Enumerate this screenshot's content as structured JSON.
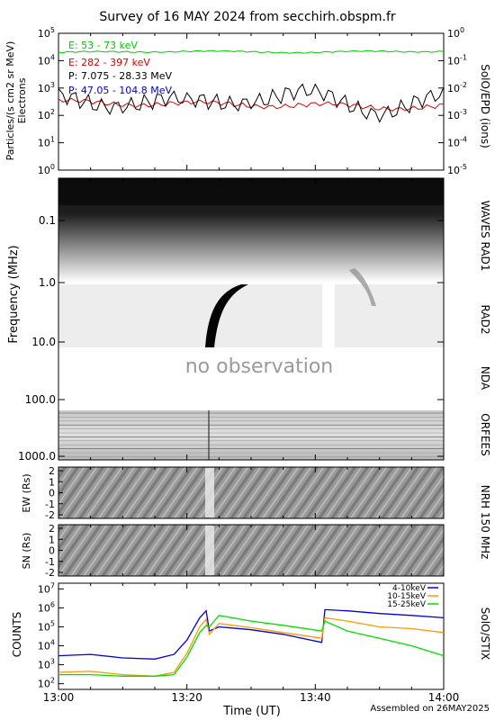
{
  "title": "Survey of 16 MAY 2024 from secchirh.obspm.fr",
  "footer": {
    "xlabel": "Time (UT)",
    "assembled": "Assembled on 26MAY2025"
  },
  "time_axis": {
    "range": [
      "13:00",
      "14:00"
    ],
    "tick_labels": [
      "13:00",
      "13:20",
      "13:40",
      "14:00"
    ]
  },
  "panels": {
    "epd": {
      "ylabel": "Particles/(s cm2 sr MeV)",
      "ylabel2": "Electrons",
      "right_label": "SolO/EPD (ions)",
      "left_ticks": [
        "10^0",
        "10^1",
        "10^2",
        "10^3",
        "10^4",
        "10^5"
      ],
      "right_ticks": [
        "10^-5",
        "10^-4",
        "10^-3",
        "10^-2",
        "10^-1",
        "10^0"
      ]
    },
    "radio": {
      "ylabel": "Frequency (MHz)",
      "freq_ticks": [
        "0.1",
        "1.0",
        "10.0",
        "100.0",
        "1000.0"
      ],
      "labels": {
        "waves": "WAVES RAD1",
        "rad2": "RAD2",
        "nda": "NDA",
        "orfees": "ORFEES"
      },
      "no_obs": "no observation"
    },
    "nrh": {
      "label": "NRH 150 MHz",
      "ew_label": "EW (Rs)",
      "sn_label": "SN (Rs)",
      "ticks": [
        "2",
        "1",
        "0",
        "-1",
        "-2"
      ]
    },
    "stix": {
      "ylabel": "COUNTS",
      "right_label": "SolO/STIX",
      "ticks": [
        "10^2",
        "10^3",
        "10^4",
        "10^5",
        "10^6",
        "10^7"
      ]
    }
  },
  "colors": {
    "green": "#00cc00",
    "red": "#dd0000",
    "black": "#000000",
    "blue": "#0000cc",
    "orange": "#ff9900",
    "stix_blue": "#0000dd",
    "stix_green": "#00dd00"
  },
  "chart_data": [
    {
      "type": "line",
      "title": "",
      "ylabel": "Particles/(s cm2 sr MeV)",
      "yscale": "log",
      "ylim": [
        1,
        100000
      ],
      "xlim": [
        "13:00",
        "14:00"
      ],
      "series": [
        {
          "name": "E: 53 - 73 keV",
          "color": "green",
          "axis": "left",
          "x": [
            "13:00",
            "13:10",
            "13:20",
            "13:30",
            "13:40",
            "13:50",
            "14:00"
          ],
          "y": [
            20000,
            21000,
            22000,
            21000,
            20000,
            22000,
            22000
          ]
        },
        {
          "name": "E: 282 - 397 keV",
          "color": "red",
          "axis": "left",
          "x": [
            "13:00",
            "13:10",
            "13:20",
            "13:30",
            "13:40",
            "13:50",
            "14:00"
          ],
          "y": [
            300,
            280,
            260,
            250,
            230,
            200,
            210
          ]
        },
        {
          "name": "P: 7.075 - 28.33 MeV",
          "color": "black",
          "axis": "right",
          "x": [
            "13:00",
            "13:10",
            "13:20",
            "13:30",
            "13:40",
            "13:50",
            "14:00"
          ],
          "y": [
            0.003,
            0.004,
            0.002,
            0.006,
            0.004,
            0.002,
            0.003
          ]
        },
        {
          "name": "P: 47.05 - 104.8 MeV",
          "color": "blue",
          "axis": "right",
          "x": [],
          "y": []
        }
      ]
    },
    {
      "type": "line",
      "ylabel": "COUNTS",
      "yscale": "log",
      "ylim": [
        100,
        10000000
      ],
      "xlim": [
        "13:00",
        "14:00"
      ],
      "legend": "top-right",
      "series": [
        {
          "name": "4-10keV",
          "color": "stix_blue",
          "x": [
            "13:00",
            "13:05",
            "13:10",
            "13:15",
            "13:18",
            "13:20",
            "13:22",
            "13:23",
            "13:23.5",
            "13:25",
            "13:30",
            "13:35",
            "13:41",
            "13:41.5",
            "13:45",
            "13:50",
            "13:55",
            "14:00"
          ],
          "y": [
            3000,
            3500,
            2300,
            2000,
            3500,
            20000,
            300000,
            700000,
            60000,
            100000,
            70000,
            40000,
            15000,
            800000,
            700000,
            500000,
            400000,
            300000
          ]
        },
        {
          "name": "10-15keV",
          "color": "orange",
          "x": [
            "13:00",
            "13:05",
            "13:10",
            "13:15",
            "13:18",
            "13:20",
            "13:22",
            "13:23",
            "13:23.5",
            "13:25",
            "13:30",
            "13:35",
            "13:41",
            "13:41.5",
            "13:45",
            "13:50",
            "13:55",
            "14:00"
          ],
          "y": [
            400,
            450,
            300,
            250,
            400,
            4000,
            100000,
            250000,
            40000,
            150000,
            90000,
            50000,
            25000,
            300000,
            200000,
            100000,
            80000,
            50000
          ]
        },
        {
          "name": "15-25keV",
          "color": "stix_green",
          "x": [
            "13:00",
            "13:05",
            "13:10",
            "13:15",
            "13:18",
            "13:20",
            "13:22",
            "13:23",
            "13:23.5",
            "13:25",
            "13:30",
            "13:35",
            "13:41",
            "13:41.5",
            "13:45",
            "13:50",
            "13:55",
            "14:00"
          ],
          "y": [
            300,
            300,
            250,
            250,
            300,
            2500,
            50000,
            120000,
            100000,
            400000,
            200000,
            120000,
            60000,
            200000,
            60000,
            25000,
            10000,
            3000
          ]
        }
      ]
    }
  ]
}
